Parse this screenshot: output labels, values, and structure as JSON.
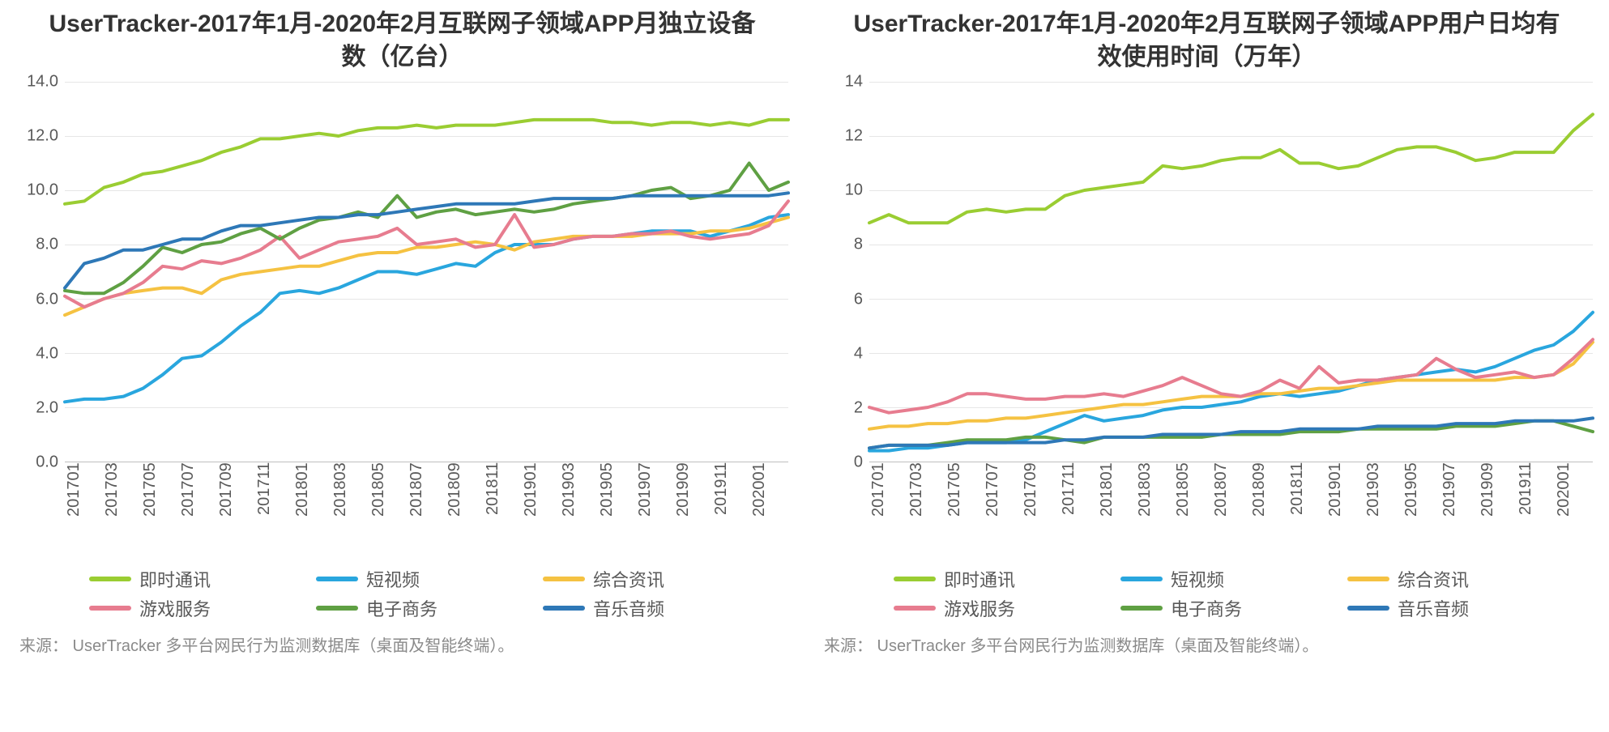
{
  "categories": [
    "201701",
    "201703",
    "201705",
    "201707",
    "201709",
    "201711",
    "201801",
    "201803",
    "201805",
    "201807",
    "201809",
    "201811",
    "201901",
    "201903",
    "201905",
    "201907",
    "201909",
    "201911",
    "202001"
  ],
  "legend_order": [
    "im",
    "shortvideo",
    "news",
    "game",
    "ecom",
    "music"
  ],
  "series_meta": {
    "im": {
      "label": "即时通讯",
      "color": "#9acd32"
    },
    "shortvideo": {
      "label": "短视频",
      "color": "#29a6de"
    },
    "news": {
      "label": "综合资讯",
      "color": "#f5c242"
    },
    "game": {
      "label": "游戏服务",
      "color": "#e77c8f"
    },
    "ecom": {
      "label": "电子商务",
      "color": "#5fa043"
    },
    "music": {
      "label": "音乐音频",
      "color": "#2e78b7"
    }
  },
  "chart_left": {
    "title": "UserTracker-2017年1月-2020年2月互联网子领域APP月独立设备数（亿台）",
    "ylim": [
      0,
      14
    ],
    "ytick_step": 2,
    "ytick_decimals": 1,
    "line_width": 4,
    "grid_color": "#e6e6e6",
    "series": {
      "im": [
        9.5,
        9.6,
        10.1,
        10.3,
        10.6,
        10.7,
        10.9,
        11.1,
        11.4,
        11.6,
        11.9,
        11.9,
        12.0,
        12.1,
        12.0,
        12.2,
        12.3,
        12.3,
        12.4,
        12.3,
        12.4,
        12.4,
        12.4,
        12.5,
        12.6,
        12.6,
        12.6,
        12.6,
        12.5,
        12.5,
        12.4,
        12.5,
        12.5,
        12.4,
        12.5,
        12.4,
        12.6,
        12.6
      ],
      "shortvideo": [
        2.2,
        2.3,
        2.3,
        2.4,
        2.7,
        3.2,
        3.8,
        3.9,
        4.4,
        5.0,
        5.5,
        6.2,
        6.3,
        6.2,
        6.4,
        6.7,
        7.0,
        7.0,
        6.9,
        7.1,
        7.3,
        7.2,
        7.7,
        8.0,
        8.0,
        8.0,
        8.2,
        8.3,
        8.3,
        8.4,
        8.5,
        8.5,
        8.5,
        8.3,
        8.5,
        8.7,
        9.0,
        9.1
      ],
      "news": [
        5.4,
        5.7,
        6.0,
        6.2,
        6.3,
        6.4,
        6.4,
        6.2,
        6.7,
        6.9,
        7.0,
        7.1,
        7.2,
        7.2,
        7.4,
        7.6,
        7.7,
        7.7,
        7.9,
        7.9,
        8.0,
        8.1,
        8.0,
        7.8,
        8.1,
        8.2,
        8.3,
        8.3,
        8.3,
        8.3,
        8.4,
        8.4,
        8.4,
        8.5,
        8.5,
        8.6,
        8.8,
        9.0
      ],
      "game": [
        6.1,
        5.7,
        6.0,
        6.2,
        6.6,
        7.2,
        7.1,
        7.4,
        7.3,
        7.5,
        7.8,
        8.3,
        7.5,
        7.8,
        8.1,
        8.2,
        8.3,
        8.6,
        8.0,
        8.1,
        8.2,
        7.9,
        8.0,
        9.1,
        7.9,
        8.0,
        8.2,
        8.3,
        8.3,
        8.4,
        8.4,
        8.5,
        8.3,
        8.2,
        8.3,
        8.4,
        8.7,
        9.6
      ],
      "ecom": [
        6.3,
        6.2,
        6.2,
        6.6,
        7.2,
        7.9,
        7.7,
        8.0,
        8.1,
        8.4,
        8.6,
        8.2,
        8.6,
        8.9,
        9.0,
        9.2,
        9.0,
        9.8,
        9.0,
        9.2,
        9.3,
        9.1,
        9.2,
        9.3,
        9.2,
        9.3,
        9.5,
        9.6,
        9.7,
        9.8,
        10.0,
        10.1,
        9.7,
        9.8,
        10.0,
        11.0,
        10.0,
        10.3
      ],
      "music": [
        6.4,
        7.3,
        7.5,
        7.8,
        7.8,
        8.0,
        8.2,
        8.2,
        8.5,
        8.7,
        8.7,
        8.8,
        8.9,
        9.0,
        9.0,
        9.1,
        9.1,
        9.2,
        9.3,
        9.4,
        9.5,
        9.5,
        9.5,
        9.5,
        9.6,
        9.7,
        9.7,
        9.7,
        9.7,
        9.8,
        9.8,
        9.8,
        9.8,
        9.8,
        9.8,
        9.8,
        9.8,
        9.9
      ]
    },
    "source": "来源： UserTracker 多平台网民行为监测数据库（桌面及智能终端）。"
  },
  "chart_right": {
    "title": "UserTracker-2017年1月-2020年2月互联网子领域APP用户日均有效使用时间（万年）",
    "ylim": [
      0,
      14
    ],
    "ytick_step": 2,
    "ytick_decimals": 0,
    "line_width": 4,
    "grid_color": "#e6e6e6",
    "series": {
      "im": [
        8.8,
        9.1,
        8.8,
        8.8,
        8.8,
        9.2,
        9.3,
        9.2,
        9.3,
        9.3,
        9.8,
        10.0,
        10.1,
        10.2,
        10.3,
        10.9,
        10.8,
        10.9,
        11.1,
        11.2,
        11.2,
        11.5,
        11.0,
        11.0,
        10.8,
        10.9,
        11.2,
        11.5,
        11.6,
        11.6,
        11.4,
        11.1,
        11.2,
        11.4,
        11.4,
        11.4,
        12.2,
        12.8
      ],
      "shortvideo": [
        0.4,
        0.4,
        0.5,
        0.5,
        0.6,
        0.7,
        0.7,
        0.7,
        0.8,
        1.1,
        1.4,
        1.7,
        1.5,
        1.6,
        1.7,
        1.9,
        2.0,
        2.0,
        2.1,
        2.2,
        2.4,
        2.5,
        2.4,
        2.5,
        2.6,
        2.8,
        3.0,
        3.1,
        3.2,
        3.3,
        3.4,
        3.3,
        3.5,
        3.8,
        4.1,
        4.3,
        4.8,
        5.5
      ],
      "news": [
        1.2,
        1.3,
        1.3,
        1.4,
        1.4,
        1.5,
        1.5,
        1.6,
        1.6,
        1.7,
        1.8,
        1.9,
        2.0,
        2.1,
        2.1,
        2.2,
        2.3,
        2.4,
        2.4,
        2.4,
        2.5,
        2.5,
        2.6,
        2.7,
        2.7,
        2.8,
        2.9,
        3.0,
        3.0,
        3.0,
        3.0,
        3.0,
        3.0,
        3.1,
        3.1,
        3.2,
        3.6,
        4.4
      ],
      "game": [
        2.0,
        1.8,
        1.9,
        2.0,
        2.2,
        2.5,
        2.5,
        2.4,
        2.3,
        2.3,
        2.4,
        2.4,
        2.5,
        2.4,
        2.6,
        2.8,
        3.1,
        2.8,
        2.5,
        2.4,
        2.6,
        3.0,
        2.7,
        3.5,
        2.9,
        3.0,
        3.0,
        3.1,
        3.2,
        3.8,
        3.4,
        3.1,
        3.2,
        3.3,
        3.1,
        3.2,
        3.8,
        4.5
      ],
      "ecom": [
        0.5,
        0.6,
        0.6,
        0.6,
        0.7,
        0.8,
        0.8,
        0.8,
        0.9,
        0.9,
        0.8,
        0.7,
        0.9,
        0.9,
        0.9,
        0.9,
        0.9,
        0.9,
        1.0,
        1.0,
        1.0,
        1.0,
        1.1,
        1.1,
        1.1,
        1.2,
        1.2,
        1.2,
        1.2,
        1.2,
        1.3,
        1.3,
        1.3,
        1.4,
        1.5,
        1.5,
        1.3,
        1.1
      ],
      "music": [
        0.5,
        0.6,
        0.6,
        0.6,
        0.6,
        0.7,
        0.7,
        0.7,
        0.7,
        0.7,
        0.8,
        0.8,
        0.9,
        0.9,
        0.9,
        1.0,
        1.0,
        1.0,
        1.0,
        1.1,
        1.1,
        1.1,
        1.2,
        1.2,
        1.2,
        1.2,
        1.3,
        1.3,
        1.3,
        1.3,
        1.4,
        1.4,
        1.4,
        1.5,
        1.5,
        1.5,
        1.5,
        1.6
      ]
    },
    "source": "来源： UserTracker 多平台网民行为监测数据库（桌面及智能终端）。"
  }
}
